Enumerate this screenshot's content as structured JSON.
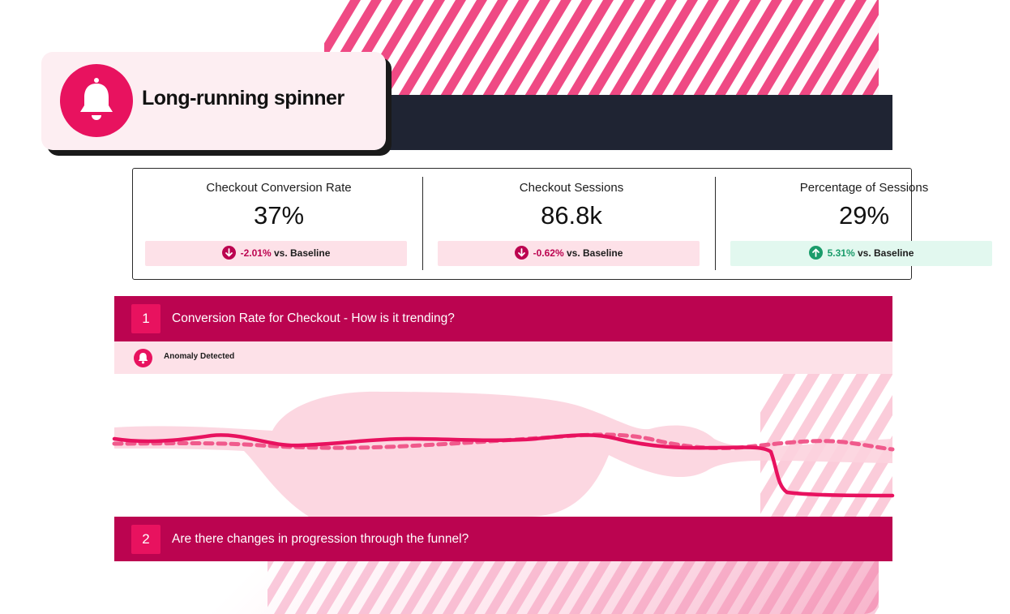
{
  "alert": {
    "title": "Long-running spinner",
    "icon": "bell-icon",
    "accent": "#e8125f"
  },
  "kpis": [
    {
      "label": "Checkout Conversion Rate",
      "value": "37%",
      "delta": "-2.01%",
      "delta_suffix": "vs. Baseline",
      "trend": "down"
    },
    {
      "label": "Checkout Sessions",
      "value": "86.8k",
      "delta": "-0.62%",
      "delta_suffix": "vs. Baseline",
      "trend": "down"
    },
    {
      "label": "Percentage of Sessions",
      "value": "29%",
      "delta": "5.31%",
      "delta_suffix": "vs. Baseline",
      "trend": "up"
    }
  ],
  "sections": [
    {
      "number": "1",
      "title": "Conversion Rate for Checkout - How is it trending?"
    },
    {
      "number": "2",
      "title": "Are there changes in progression through the funnel?"
    }
  ],
  "anomaly": {
    "label": "Anomaly Detected",
    "icon": "bell-icon"
  },
  "colors": {
    "brand": "#bb0450",
    "accent": "#e8125f",
    "header": "#1f2433",
    "negative": "#bc0450",
    "positive": "#1a9c6b"
  }
}
